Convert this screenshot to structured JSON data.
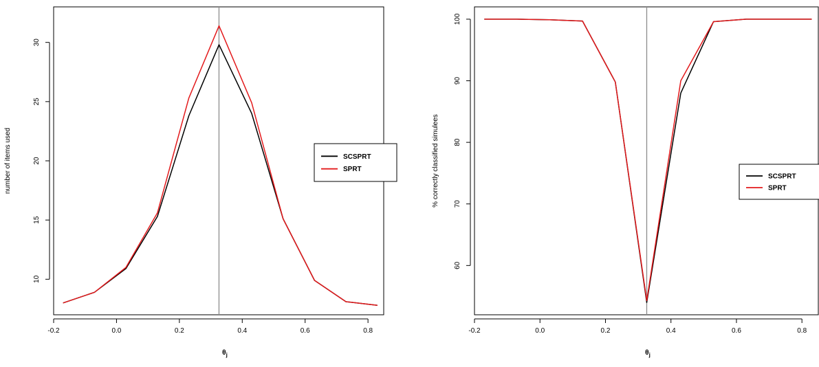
{
  "chart_data": [
    {
      "type": "line",
      "title": "",
      "xlabel": "θj",
      "ylabel": "number of items used",
      "xlim": [
        -0.2,
        0.85
      ],
      "ylim": [
        7,
        33
      ],
      "xticks": [
        -0.2,
        0.0,
        0.2,
        0.4,
        0.6,
        0.8
      ],
      "xtick_labels": [
        "-0.2",
        "0.0",
        "0.2",
        "0.4",
        "0.6",
        "0.8"
      ],
      "yticks": [
        10,
        15,
        20,
        25,
        30
      ],
      "ytick_labels": [
        "10",
        "15",
        "20",
        "25",
        "30"
      ],
      "vline": 0.326,
      "grid": false,
      "legend_position": "right",
      "x": [
        -0.17,
        -0.07,
        0.03,
        0.13,
        0.23,
        0.326,
        0.43,
        0.53,
        0.63,
        0.73,
        0.83
      ],
      "series": [
        {
          "name": "SCSPRT",
          "color": "#000000",
          "values": [
            8.0,
            8.9,
            10.9,
            15.3,
            23.8,
            29.8,
            24.0,
            15.1,
            9.9,
            8.1,
            7.8
          ]
        },
        {
          "name": "SPRT",
          "color": "#e31a1c",
          "values": [
            8.0,
            8.9,
            11.0,
            15.6,
            25.3,
            31.4,
            24.9,
            15.1,
            9.9,
            8.1,
            7.8
          ]
        }
      ]
    },
    {
      "type": "line",
      "title": "",
      "xlabel": "θj",
      "ylabel": "% correctly classified simulees",
      "xlim": [
        -0.2,
        0.85
      ],
      "ylim": [
        52,
        102
      ],
      "xticks": [
        -0.2,
        0.0,
        0.2,
        0.4,
        0.6,
        0.8
      ],
      "xtick_labels": [
        "-0.2",
        "0.0",
        "0.2",
        "0.4",
        "0.6",
        "0.8"
      ],
      "yticks": [
        60,
        70,
        80,
        90,
        100
      ],
      "ytick_labels": [
        "60",
        "70",
        "80",
        "90",
        "100"
      ],
      "vline": 0.326,
      "grid": false,
      "legend_position": "right",
      "x": [
        -0.17,
        -0.07,
        0.03,
        0.13,
        0.23,
        0.326,
        0.43,
        0.53,
        0.63,
        0.73,
        0.83
      ],
      "series": [
        {
          "name": "SCSPRT",
          "color": "#000000",
          "values": [
            100,
            100,
            99.9,
            99.7,
            89.8,
            54.0,
            88.0,
            99.6,
            100,
            100,
            100
          ]
        },
        {
          "name": "SPRT",
          "color": "#e31a1c",
          "values": [
            100,
            100,
            99.9,
            99.7,
            89.8,
            54.3,
            90.0,
            99.6,
            100,
            100,
            100
          ]
        }
      ]
    }
  ]
}
